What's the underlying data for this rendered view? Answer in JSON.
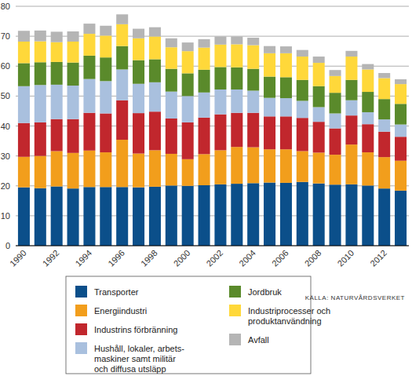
{
  "chart_data": {
    "type": "bar",
    "stacked": true,
    "grid": true,
    "annotations": [
      "KÄLLA: NATURVÅRDSVERKET"
    ],
    "categories": [
      "1990",
      null,
      "1992",
      null,
      "1994",
      null,
      "1996",
      null,
      "1998",
      null,
      "2000",
      null,
      "2002",
      null,
      "2004",
      null,
      "2006",
      null,
      "2008",
      null,
      "2010",
      null,
      "2012",
      null
    ],
    "ylim": [
      0,
      80
    ],
    "yticks": [
      0,
      10,
      20,
      30,
      40,
      50,
      60,
      70,
      80
    ],
    "series": [
      {
        "name": "Transporter",
        "color": "#0b4f8a",
        "values": [
          19.5,
          19.2,
          19.8,
          19.1,
          19.6,
          19.6,
          19.6,
          19.5,
          19.7,
          20.1,
          20.0,
          20.2,
          20.5,
          20.7,
          20.9,
          21.1,
          21.0,
          21.3,
          20.8,
          20.4,
          20.5,
          20.1,
          19.1,
          18.4
        ]
      },
      {
        "name": "Energiindustri",
        "color": "#f29e1c",
        "values": [
          10.2,
          10.8,
          11.8,
          11.9,
          12.2,
          11.6,
          15.8,
          11.3,
          12.2,
          10.6,
          8.9,
          10.4,
          11.4,
          12.3,
          12.0,
          11.1,
          11.2,
          10.3,
          10.3,
          10.0,
          13.3,
          11.1,
          10.5,
          10.0
        ]
      },
      {
        "name": "Industrins förbränning",
        "color": "#c1272d",
        "values": [
          11.3,
          11.2,
          10.7,
          11.3,
          12.6,
          13.0,
          13.2,
          13.5,
          12.9,
          11.8,
          12.3,
          12.2,
          12.0,
          11.4,
          11.5,
          11.0,
          11.0,
          11.1,
          10.3,
          8.8,
          9.7,
          9.4,
          8.5,
          8.0
        ]
      },
      {
        "name": "Hushåll, lokaler, arbets-\nmaskiner samt militär\noch diffusa utsläpp",
        "color": "#a9c0de",
        "values": [
          12.3,
          12.5,
          11.5,
          11.2,
          11.3,
          10.8,
          10.3,
          9.8,
          9.8,
          9.0,
          8.8,
          8.4,
          8.3,
          7.8,
          7.4,
          6.2,
          6.1,
          5.7,
          4.9,
          5.0,
          5.1,
          4.0,
          4.1,
          4.1
        ]
      },
      {
        "name": "Jordbruk",
        "color": "#5a8a2b",
        "values": [
          7.7,
          7.6,
          7.6,
          7.7,
          7.8,
          7.9,
          7.8,
          7.9,
          7.7,
          7.6,
          7.6,
          7.6,
          7.5,
          7.4,
          7.3,
          7.1,
          7.0,
          7.0,
          7.0,
          6.9,
          6.8,
          6.8,
          6.8,
          6.9
        ]
      },
      {
        "name": "Industriprocesser och\nproduktanvändning",
        "color": "#ffd83a",
        "values": [
          7.2,
          7.0,
          6.6,
          7.0,
          7.3,
          7.3,
          7.3,
          7.3,
          7.6,
          7.2,
          7.4,
          7.4,
          7.5,
          7.7,
          7.9,
          7.8,
          8.0,
          7.8,
          7.8,
          5.6,
          7.8,
          7.5,
          7.0,
          6.6
        ]
      },
      {
        "name": "Avfall",
        "color": "#b5b5b5",
        "values": [
          3.6,
          3.6,
          3.5,
          3.4,
          3.4,
          3.3,
          3.3,
          3.2,
          3.1,
          3.0,
          2.9,
          2.8,
          2.7,
          2.6,
          2.5,
          2.4,
          2.3,
          2.2,
          2.1,
          2.0,
          1.9,
          1.8,
          1.7,
          1.6
        ]
      }
    ]
  }
}
